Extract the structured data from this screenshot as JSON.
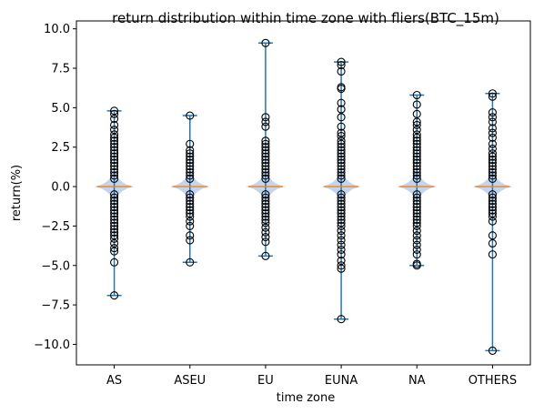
{
  "chart_data": {
    "type": "violin",
    "title": "return distribution within time zone with fliers(BTC_15m)",
    "xlabel": "time zone",
    "ylabel": "return(%)",
    "ylim": [
      -11.3,
      10.5
    ],
    "yticks": [
      10.0,
      7.5,
      5.0,
      2.5,
      0.0,
      -2.5,
      -5.0,
      -7.5,
      -10.0
    ],
    "ytick_labels": [
      "10.0",
      "7.5",
      "5.0",
      "2.5",
      "0.0",
      "−2.5",
      "−5.0",
      "−7.5",
      "−10.0"
    ],
    "categories": [
      "AS",
      "ASEU",
      "EU",
      "EUNA",
      "NA",
      "OTHERS"
    ],
    "grid": false,
    "colors": {
      "whisker": "#1f77b4",
      "median": "#ff7f0e",
      "violin": "#aec7e8",
      "flier": "#000000"
    },
    "series": [
      {
        "category": "AS",
        "min": -6.9,
        "max": 4.8,
        "median": 0.0,
        "fliers": [
          4.8,
          4.6,
          4.3,
          3.9,
          3.6,
          3.3,
          3.1,
          2.9,
          2.7,
          2.5,
          2.3,
          2.1,
          1.9,
          1.7,
          1.5,
          1.3,
          1.1,
          0.9,
          0.7,
          0.5,
          -0.5,
          -0.7,
          -0.9,
          -1.1,
          -1.3,
          -1.5,
          -1.7,
          -1.9,
          -2.1,
          -2.3,
          -2.5,
          -2.7,
          -2.9,
          -3.1,
          -3.3,
          -3.6,
          -3.9,
          -4.1,
          -4.8,
          -6.9
        ]
      },
      {
        "category": "ASEU",
        "min": -4.8,
        "max": 4.5,
        "median": 0.0,
        "fliers": [
          4.5,
          2.7,
          2.3,
          2.1,
          1.9,
          1.7,
          1.5,
          1.3,
          1.1,
          0.9,
          0.7,
          0.5,
          -0.5,
          -0.7,
          -0.9,
          -1.1,
          -1.3,
          -1.5,
          -1.7,
          -1.9,
          -2.2,
          -2.5,
          -3.1,
          -3.4,
          -4.8
        ]
      },
      {
        "category": "EU",
        "min": -4.4,
        "max": 9.1,
        "median": 0.0,
        "fliers": [
          9.1,
          4.4,
          4.1,
          3.8,
          2.9,
          2.7,
          2.5,
          2.3,
          2.1,
          1.9,
          1.7,
          1.5,
          1.3,
          1.1,
          0.9,
          0.7,
          0.5,
          -0.5,
          -0.7,
          -0.9,
          -1.1,
          -1.3,
          -1.5,
          -1.7,
          -1.9,
          -2.1,
          -2.3,
          -2.6,
          -2.9,
          -3.2,
          -3.5,
          -4.4
        ]
      },
      {
        "category": "EUNA",
        "min": -8.4,
        "max": 7.9,
        "median": 0.0,
        "fliers": [
          7.9,
          7.7,
          7.3,
          6.3,
          6.2,
          5.3,
          4.9,
          4.4,
          3.8,
          3.4,
          3.2,
          2.9,
          2.7,
          2.5,
          2.3,
          2.1,
          1.9,
          1.7,
          1.5,
          1.3,
          1.1,
          0.9,
          0.7,
          0.5,
          -0.5,
          -0.7,
          -0.9,
          -1.1,
          -1.3,
          -1.5,
          -1.7,
          -1.9,
          -2.1,
          -2.3,
          -2.5,
          -2.8,
          -3.1,
          -3.4,
          -3.7,
          -4.0,
          -4.3,
          -4.7,
          -5.0,
          -5.2,
          -8.4
        ]
      },
      {
        "category": "NA",
        "min": -5.0,
        "max": 5.8,
        "median": 0.0,
        "fliers": [
          5.8,
          5.2,
          4.6,
          4.1,
          3.9,
          3.6,
          3.3,
          3.1,
          2.9,
          2.7,
          2.5,
          2.3,
          2.1,
          1.9,
          1.7,
          1.5,
          1.3,
          1.1,
          0.9,
          0.7,
          0.5,
          -0.5,
          -0.7,
          -0.9,
          -1.1,
          -1.3,
          -1.5,
          -1.7,
          -1.9,
          -2.1,
          -2.3,
          -2.5,
          -2.8,
          -3.1,
          -3.4,
          -3.7,
          -4.0,
          -4.3,
          -4.9,
          -5.0
        ]
      },
      {
        "category": "OTHERS",
        "min": -10.4,
        "max": 5.9,
        "median": 0.0,
        "fliers": [
          5.9,
          5.7,
          4.7,
          4.4,
          4.1,
          3.7,
          3.4,
          3.1,
          2.7,
          2.4,
          2.1,
          1.9,
          1.7,
          1.5,
          1.3,
          1.1,
          0.9,
          0.7,
          0.5,
          -0.5,
          -0.7,
          -0.9,
          -1.1,
          -1.3,
          -1.5,
          -1.7,
          -1.9,
          -2.2,
          -3.1,
          -3.6,
          -4.3,
          -10.4
        ]
      }
    ]
  }
}
